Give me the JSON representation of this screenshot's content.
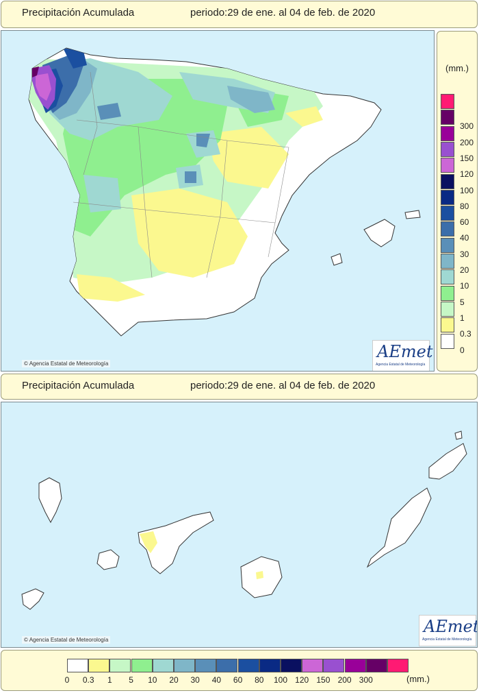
{
  "top_panel": {
    "title": "Precipitación Acumulada",
    "period": "periodo:29 de ene. al 04 de feb. de 2020",
    "copyright": "Agencia Estatal de Meteorología",
    "logo_text": "AEmet",
    "logo_subtext": "Agencia Estatal de Meteorología"
  },
  "canary_panel": {
    "title": "Precipitación Acumulada",
    "period": "periodo:29 de ene. al 04 de feb. de 2020",
    "copyright": "Agencia Estatal de Meteorología",
    "logo_text": "AEmet",
    "logo_subtext": "Agencia Estatal de Meteorología"
  },
  "legend": {
    "unit": "(mm.)",
    "levels": [
      {
        "label": "0",
        "color": "#ffffff"
      },
      {
        "label": "0.3",
        "color": "#fbf88f"
      },
      {
        "label": "1",
        "color": "#c6f7c6"
      },
      {
        "label": "5",
        "color": "#8fef8f"
      },
      {
        "label": "10",
        "color": "#9fd8d2"
      },
      {
        "label": "20",
        "color": "#7fb6c8"
      },
      {
        "label": "30",
        "color": "#5a8fb8"
      },
      {
        "label": "40",
        "color": "#3c6eaa"
      },
      {
        "label": "60",
        "color": "#1b4fa0"
      },
      {
        "label": "80",
        "color": "#0a2a84"
      },
      {
        "label": "100",
        "color": "#0a1060"
      },
      {
        "label": "120",
        "color": "#cc66d6"
      },
      {
        "label": "150",
        "color": "#9950d0"
      },
      {
        "label": "200",
        "color": "#990099"
      },
      {
        "label": "300",
        "color": "#660066"
      },
      {
        "label": "",
        "color": "#ff1a73"
      }
    ]
  }
}
